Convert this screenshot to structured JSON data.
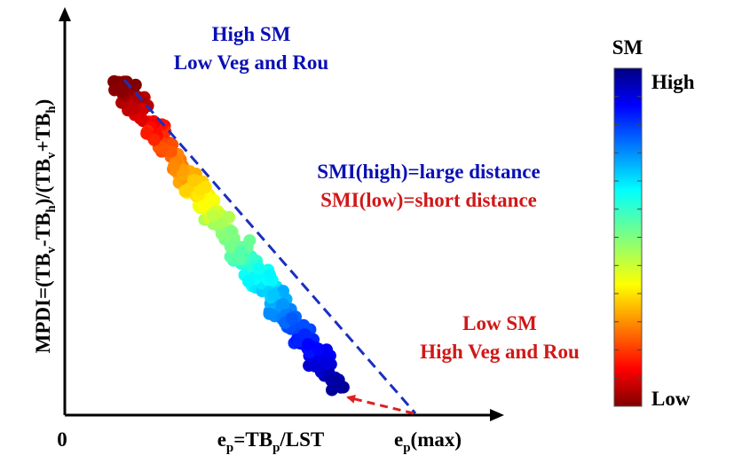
{
  "annotations": {
    "top_line1": "High SM",
    "top_line2": "Low Veg and Rou",
    "mid_line1": "SMI(high)=large distance",
    "mid_line2": "SMI(low)=short distance",
    "bottom_line1": "Low SM",
    "bottom_line2": "High Veg and Rou"
  },
  "axes": {
    "origin": "0",
    "y_label": {
      "part1": "MPDI=(TB",
      "sub1": "v",
      "part2": "-TB",
      "sub2": "h",
      "part3": ")/(TB",
      "sub3": "v",
      "part4": "+TB",
      "sub4": "h",
      "part5": ")"
    },
    "x_label": {
      "base1": "e",
      "sub1": "p",
      "part2": "=TB",
      "sub2": "p",
      "part3": "/LST"
    },
    "x_max_label": {
      "base": "e",
      "sub": "p",
      "rest": "(max)"
    }
  },
  "colorbar": {
    "title": "SM",
    "high_label": "High",
    "low_label": "Low",
    "colormap": "jet"
  },
  "colors": {
    "high_text": "#0a10b4",
    "low_text": "#d01818",
    "dashed_line": "#1a2fbf",
    "arrow": "#e02020",
    "axis": "#000000"
  }
}
